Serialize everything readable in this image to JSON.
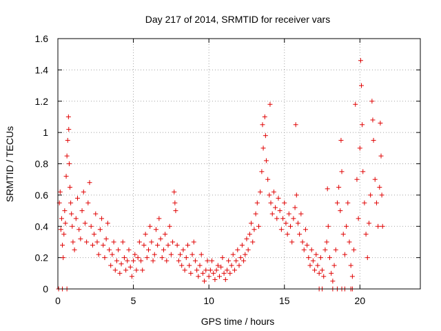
{
  "chart_data": {
    "type": "scatter",
    "title": "Day 217 of 2014, SRMTID for receiver vars",
    "xlabel": "GPS time / hours",
    "ylabel": "SRMTID / TECUs",
    "xlim": [
      0,
      24
    ],
    "ylim": [
      0,
      1.6
    ],
    "xticks": [
      0,
      5,
      10,
      15,
      20
    ],
    "xtick_labels": [
      "0",
      "5",
      "10",
      "15",
      "20"
    ],
    "yticks": [
      0,
      0.2,
      0.4,
      0.6,
      0.8,
      1.0,
      1.2,
      1.4,
      1.6
    ],
    "ytick_labels": [
      "0",
      "0.2",
      "0.4",
      "0.6",
      "0.8",
      "1",
      "1.2",
      "1.4",
      "1.6"
    ],
    "grid": true,
    "marker": "+",
    "marker_color": "#e00000",
    "series": [
      {
        "name": "SRMTID",
        "points": [
          [
            0.1,
            0.55
          ],
          [
            0.15,
            0.62
          ],
          [
            0.2,
            0.38
          ],
          [
            0.25,
            0.45
          ],
          [
            0.3,
            0.28
          ],
          [
            0.35,
            0.2
          ],
          [
            0.4,
            0.35
          ],
          [
            0.45,
            0.5
          ],
          [
            0.5,
            0.42
          ],
          [
            0.55,
            0.72
          ],
          [
            0.6,
            0.85
          ],
          [
            0.65,
            0.95
          ],
          [
            0.7,
            1.1
          ],
          [
            0.72,
            1.02
          ],
          [
            0.75,
            0.8
          ],
          [
            0.8,
            0.65
          ],
          [
            0.85,
            0.55
          ],
          [
            0.9,
            0.48
          ],
          [
            0.95,
            0.4
          ],
          [
            1.0,
            0.3
          ],
          [
            1.1,
            0.25
          ],
          [
            1.2,
            0.45
          ],
          [
            1.3,
            0.58
          ],
          [
            1.4,
            0.38
          ],
          [
            1.5,
            0.32
          ],
          [
            1.6,
            0.5
          ],
          [
            1.7,
            0.62
          ],
          [
            1.8,
            0.42
          ],
          [
            1.9,
            0.3
          ],
          [
            2.0,
            0.55
          ],
          [
            2.1,
            0.68
          ],
          [
            2.2,
            0.4
          ],
          [
            2.3,
            0.28
          ],
          [
            2.4,
            0.35
          ],
          [
            2.5,
            0.48
          ],
          [
            2.6,
            0.3
          ],
          [
            2.7,
            0.22
          ],
          [
            2.8,
            0.38
          ],
          [
            2.9,
            0.45
          ],
          [
            3.0,
            0.28
          ],
          [
            3.1,
            0.2
          ],
          [
            3.2,
            0.32
          ],
          [
            3.3,
            0.42
          ],
          [
            3.4,
            0.25
          ],
          [
            3.5,
            0.15
          ],
          [
            3.6,
            0.22
          ],
          [
            3.7,
            0.3
          ],
          [
            3.8,
            0.12
          ],
          [
            3.9,
            0.18
          ],
          [
            4.0,
            0.25
          ],
          [
            4.1,
            0.1
          ],
          [
            4.2,
            0.16
          ],
          [
            4.3,
            0.3
          ],
          [
            4.4,
            0.2
          ],
          [
            4.5,
            0.12
          ],
          [
            4.6,
            0.18
          ],
          [
            4.7,
            0.25
          ],
          [
            4.8,
            0.14
          ],
          [
            4.9,
            0.08
          ],
          [
            5.0,
            0.18
          ],
          [
            5.1,
            0.22
          ],
          [
            5.2,
            0.12
          ],
          [
            5.3,
            0.2
          ],
          [
            5.4,
            0.3
          ],
          [
            5.5,
            0.18
          ],
          [
            5.6,
            0.12
          ],
          [
            5.7,
            0.28
          ],
          [
            5.8,
            0.35
          ],
          [
            5.9,
            0.2
          ],
          [
            6.0,
            0.25
          ],
          [
            6.1,
            0.4
          ],
          [
            6.2,
            0.3
          ],
          [
            6.3,
            0.18
          ],
          [
            6.4,
            0.22
          ],
          [
            6.5,
            0.38
          ],
          [
            6.6,
            0.28
          ],
          [
            6.7,
            0.45
          ],
          [
            6.8,
            0.32
          ],
          [
            6.9,
            0.2
          ],
          [
            7.0,
            0.25
          ],
          [
            7.1,
            0.35
          ],
          [
            7.2,
            0.18
          ],
          [
            7.3,
            0.28
          ],
          [
            7.4,
            0.4
          ],
          [
            7.5,
            0.22
          ],
          [
            7.6,
            0.3
          ],
          [
            7.7,
            0.62
          ],
          [
            7.75,
            0.55
          ],
          [
            7.8,
            0.5
          ],
          [
            7.9,
            0.28
          ],
          [
            8.0,
            0.18
          ],
          [
            8.1,
            0.22
          ],
          [
            8.2,
            0.15
          ],
          [
            8.3,
            0.25
          ],
          [
            8.4,
            0.12
          ],
          [
            8.5,
            0.2
          ],
          [
            8.6,
            0.28
          ],
          [
            8.7,
            0.15
          ],
          [
            8.8,
            0.1
          ],
          [
            8.9,
            0.22
          ],
          [
            9.0,
            0.3
          ],
          [
            9.1,
            0.18
          ],
          [
            9.2,
            0.12
          ],
          [
            9.3,
            0.08
          ],
          [
            9.4,
            0.15
          ],
          [
            9.5,
            0.22
          ],
          [
            9.6,
            0.1
          ],
          [
            9.7,
            0.05
          ],
          [
            9.8,
            0.12
          ],
          [
            9.9,
            0.18
          ],
          [
            10.0,
            0.08
          ],
          [
            10.1,
            0.12
          ],
          [
            10.2,
            0.18
          ],
          [
            10.3,
            0.1
          ],
          [
            10.4,
            0.06
          ],
          [
            10.5,
            0.12
          ],
          [
            10.6,
            0.15
          ],
          [
            10.7,
            0.08
          ],
          [
            10.8,
            0.14
          ],
          [
            10.9,
            0.2
          ],
          [
            11.0,
            0.1
          ],
          [
            11.1,
            0.06
          ],
          [
            11.2,
            0.12
          ],
          [
            11.3,
            0.18
          ],
          [
            11.4,
            0.1
          ],
          [
            11.5,
            0.15
          ],
          [
            11.6,
            0.22
          ],
          [
            11.7,
            0.12
          ],
          [
            11.8,
            0.18
          ],
          [
            11.9,
            0.25
          ],
          [
            12.0,
            0.15
          ],
          [
            12.1,
            0.2
          ],
          [
            12.2,
            0.28
          ],
          [
            12.3,
            0.18
          ],
          [
            12.4,
            0.22
          ],
          [
            12.5,
            0.32
          ],
          [
            12.6,
            0.25
          ],
          [
            12.7,
            0.35
          ],
          [
            12.8,
            0.42
          ],
          [
            12.9,
            0.3
          ],
          [
            13.0,
            0.38
          ],
          [
            13.1,
            0.48
          ],
          [
            13.2,
            0.55
          ],
          [
            13.3,
            0.4
          ],
          [
            13.4,
            0.62
          ],
          [
            13.5,
            0.75
          ],
          [
            13.55,
            1.05
          ],
          [
            13.6,
            0.9
          ],
          [
            13.7,
            1.1
          ],
          [
            13.75,
            0.98
          ],
          [
            13.8,
            0.82
          ],
          [
            13.9,
            0.7
          ],
          [
            14.0,
            0.6
          ],
          [
            14.05,
            1.18
          ],
          [
            14.1,
            0.55
          ],
          [
            14.2,
            0.48
          ],
          [
            14.3,
            0.62
          ],
          [
            14.4,
            0.52
          ],
          [
            14.5,
            0.45
          ],
          [
            14.6,
            0.58
          ],
          [
            14.7,
            0.5
          ],
          [
            14.8,
            0.38
          ],
          [
            14.9,
            0.45
          ],
          [
            15.0,
            0.55
          ],
          [
            15.1,
            0.42
          ],
          [
            15.2,
            0.35
          ],
          [
            15.3,
            0.48
          ],
          [
            15.4,
            0.4
          ],
          [
            15.5,
            0.3
          ],
          [
            15.6,
            0.45
          ],
          [
            15.7,
            0.52
          ],
          [
            15.75,
            1.05
          ],
          [
            15.8,
            0.6
          ],
          [
            15.9,
            0.42
          ],
          [
            16.0,
            0.35
          ],
          [
            16.1,
            0.48
          ],
          [
            16.2,
            0.3
          ],
          [
            16.3,
            0.25
          ],
          [
            16.4,
            0.38
          ],
          [
            16.5,
            0.28
          ],
          [
            16.6,
            0.2
          ],
          [
            16.7,
            0.15
          ],
          [
            16.8,
            0.25
          ],
          [
            16.9,
            0.18
          ],
          [
            17.0,
            0.12
          ],
          [
            17.1,
            0.22
          ],
          [
            17.2,
            0.15
          ],
          [
            17.3,
            0.1
          ],
          [
            17.4,
            0.2
          ],
          [
            17.5,
            0.12
          ],
          [
            17.6,
            0.08
          ],
          [
            17.7,
            0.25
          ],
          [
            17.8,
            0.3
          ],
          [
            17.85,
            0.64
          ],
          [
            17.9,
            0.4
          ],
          [
            18.0,
            0.2
          ],
          [
            18.1,
            0.1
          ],
          [
            18.2,
            0.05
          ],
          [
            18.3,
            0.15
          ],
          [
            18.4,
            0.25
          ],
          [
            18.5,
            0.55
          ],
          [
            18.6,
            0.65
          ],
          [
            18.7,
            0.5
          ],
          [
            18.75,
            0.95
          ],
          [
            18.8,
            0.75
          ],
          [
            18.9,
            0.35
          ],
          [
            19.0,
            0.22
          ],
          [
            19.1,
            0.4
          ],
          [
            19.2,
            0.55
          ],
          [
            19.3,
            0.3
          ],
          [
            19.4,
            0.15
          ],
          [
            19.5,
            0.08
          ],
          [
            19.6,
            0.25
          ],
          [
            19.7,
            1.18
          ],
          [
            19.8,
            0.7
          ],
          [
            19.9,
            0.45
          ],
          [
            20.0,
            0.9
          ],
          [
            20.05,
            1.46
          ],
          [
            20.1,
            1.3
          ],
          [
            20.15,
            1.05
          ],
          [
            20.2,
            0.75
          ],
          [
            20.3,
            0.55
          ],
          [
            20.4,
            0.35
          ],
          [
            20.5,
            0.2
          ],
          [
            20.6,
            0.42
          ],
          [
            20.7,
            0.6
          ],
          [
            20.8,
            1.2
          ],
          [
            20.85,
            1.08
          ],
          [
            20.9,
            0.95
          ],
          [
            21.0,
            0.7
          ],
          [
            21.1,
            0.55
          ],
          [
            21.2,
            0.4
          ],
          [
            21.3,
            0.65
          ],
          [
            21.35,
            1.06
          ],
          [
            21.4,
            0.85
          ],
          [
            21.45,
            0.6
          ],
          [
            21.5,
            0.4
          ],
          [
            0.05,
            0.0
          ],
          [
            0.3,
            0.0
          ],
          [
            0.6,
            0.0
          ],
          [
            17.3,
            0.0
          ],
          [
            17.5,
            0.0
          ],
          [
            18.2,
            0.0
          ],
          [
            18.5,
            0.0
          ],
          [
            18.8,
            0.0
          ],
          [
            19.0,
            0.0
          ],
          [
            19.4,
            0.0
          ],
          [
            19.5,
            0.0
          ]
        ]
      }
    ]
  }
}
